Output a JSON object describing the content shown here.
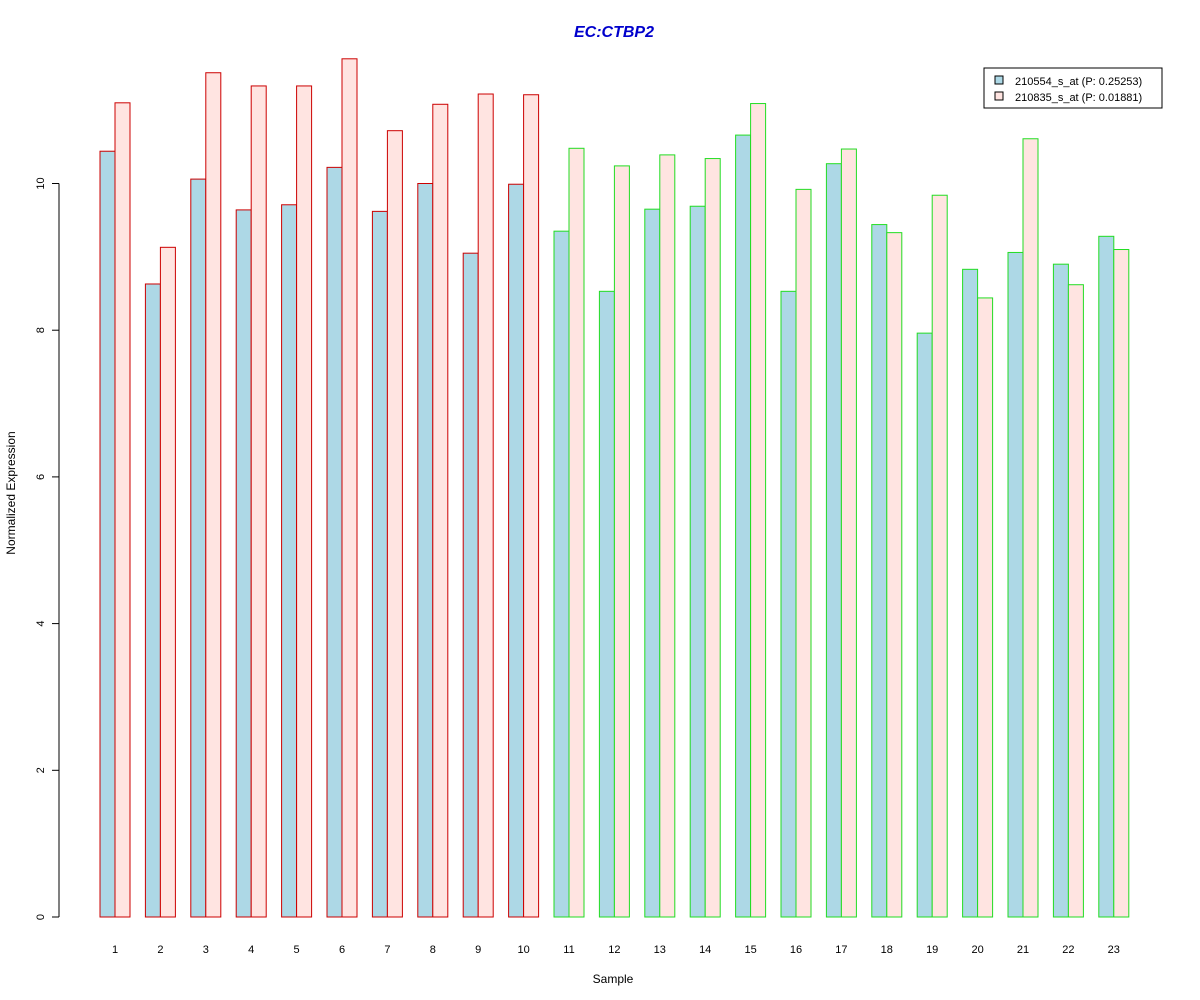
{
  "chart_data": {
    "type": "bar",
    "title": "EC:CTBP2",
    "xlabel": "Sample",
    "ylabel": "Normalized Expression",
    "ylim": [
      0,
      11.8
    ],
    "yticks": [
      0,
      2,
      4,
      6,
      8,
      10
    ],
    "grid": false,
    "legend_position": "top-right",
    "categories": [
      "1",
      "2",
      "3",
      "4",
      "5",
      "6",
      "7",
      "8",
      "9",
      "10",
      "11",
      "12",
      "13",
      "14",
      "15",
      "16",
      "17",
      "18",
      "19",
      "20",
      "21",
      "22",
      "23"
    ],
    "group_border_colors": [
      "#cc0000",
      "#cc0000",
      "#cc0000",
      "#cc0000",
      "#cc0000",
      "#cc0000",
      "#cc0000",
      "#cc0000",
      "#cc0000",
      "#cc0000",
      "#22dd22",
      "#22dd22",
      "#22dd22",
      "#22dd22",
      "#22dd22",
      "#22dd22",
      "#22dd22",
      "#22dd22",
      "#22dd22",
      "#22dd22",
      "#22dd22",
      "#22dd22",
      "#22dd22"
    ],
    "series": [
      {
        "name": "210554_s_at (P: 0.25253)",
        "fill": "#add8e6",
        "values": [
          10.44,
          8.63,
          10.06,
          9.64,
          9.71,
          10.22,
          9.62,
          10.0,
          9.05,
          9.99,
          9.35,
          8.53,
          9.65,
          9.69,
          10.66,
          8.53,
          10.27,
          9.44,
          7.96,
          8.83,
          9.06,
          8.9,
          9.28
        ]
      },
      {
        "name": "210835_s_at (P: 0.01881)",
        "fill": "#ffe4e1",
        "values": [
          11.1,
          9.13,
          11.51,
          11.33,
          11.33,
          11.7,
          10.72,
          11.08,
          11.22,
          11.21,
          10.48,
          10.24,
          10.39,
          10.34,
          11.09,
          9.92,
          10.47,
          9.33,
          9.84,
          8.44,
          10.61,
          8.62,
          9.1
        ]
      }
    ]
  }
}
